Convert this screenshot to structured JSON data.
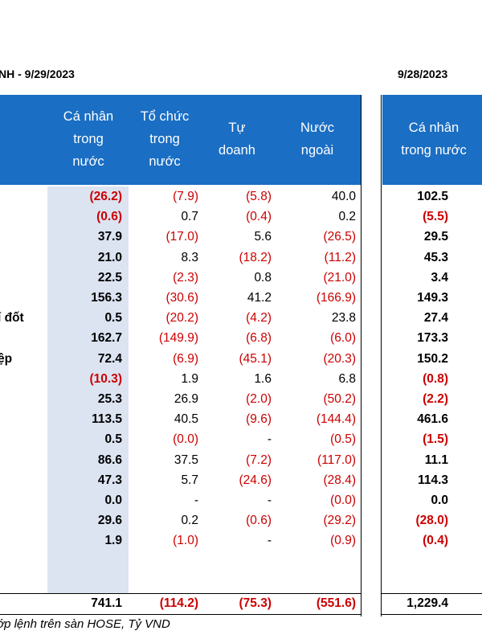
{
  "left_title": "NH - 9/29/2023",
  "right_title": "9/28/2023",
  "headers": [
    "Cá nhân\ntrong\nnước",
    "Tổ chức\ntrong\nnước",
    "Tự\ndoanh",
    "Nước\nngoài"
  ],
  "right_header": "Cá nhân\ntrong nước",
  "colors": {
    "header_bg": "#1a6ec3",
    "highlight_col": "#dce4f2",
    "negative": "#cc0000"
  },
  "rows": [
    {
      "label": "",
      "values": [
        "(26.2)",
        "(7.9)",
        "(5.8)",
        "40.0"
      ],
      "prev": "102.5"
    },
    {
      "label": "",
      "values": [
        "(0.6)",
        "0.7",
        "(0.4)",
        "0.2"
      ],
      "prev": "(5.5)"
    },
    {
      "label": "",
      "values": [
        "37.9",
        "(17.0)",
        "5.6",
        "(26.5)"
      ],
      "prev": "29.5"
    },
    {
      "label": "",
      "values": [
        "21.0",
        "8.3",
        "(18.2)",
        "(11.2)"
      ],
      "prev": "45.3"
    },
    {
      "label": "",
      "values": [
        "22.5",
        "(2.3)",
        "0.8",
        "(21.0)"
      ],
      "prev": "3.4"
    },
    {
      "label": "",
      "values": [
        "156.3",
        "(30.6)",
        "41.2",
        "(166.9)"
      ],
      "prev": "149.3"
    },
    {
      "label": "í đốt",
      "values": [
        "0.5",
        "(20.2)",
        "(4.2)",
        "23.8"
      ],
      "prev": "27.4"
    },
    {
      "label": "",
      "values": [
        "162.7",
        "(149.9)",
        "(6.8)",
        "(6.0)"
      ],
      "prev": "173.3"
    },
    {
      "label": "ệp",
      "values": [
        "72.4",
        "(6.9)",
        "(45.1)",
        "(20.3)"
      ],
      "prev": "150.2"
    },
    {
      "label": "",
      "values": [
        "(10.3)",
        "1.9",
        "1.6",
        "6.8"
      ],
      "prev": "(0.8)"
    },
    {
      "label": "",
      "values": [
        "25.3",
        "26.9",
        "(2.0)",
        "(50.2)"
      ],
      "prev": "(2.2)"
    },
    {
      "label": "",
      "values": [
        "113.5",
        "40.5",
        "(9.6)",
        "(144.4)"
      ],
      "prev": "461.6"
    },
    {
      "label": "",
      "values": [
        "0.5",
        "(0.0)",
        "-",
        "(0.5)"
      ],
      "prev": "(1.5)"
    },
    {
      "label": "",
      "values": [
        "86.6",
        "37.5",
        "(7.2)",
        "(117.0)"
      ],
      "prev": "11.1"
    },
    {
      "label": "",
      "values": [
        "47.3",
        "5.7",
        "(24.6)",
        "(28.4)"
      ],
      "prev": "114.3"
    },
    {
      "label": "",
      "values": [
        "0.0",
        "-",
        "-",
        "(0.0)"
      ],
      "prev": "0.0"
    },
    {
      "label": "",
      "values": [
        "29.6",
        "0.2",
        "(0.6)",
        "(29.2)"
      ],
      "prev": "(28.0)"
    },
    {
      "label": "",
      "values": [
        "1.9",
        "(1.0)",
        "-",
        "(0.9)"
      ],
      "prev": "(0.4)"
    }
  ],
  "total": {
    "values": [
      "741.1",
      "(114.2)",
      "(75.3)",
      "(551.6)"
    ],
    "prev": "1,229.4"
  },
  "footnote": "ớp lệnh trên sàn HOSE, Tỷ VND"
}
